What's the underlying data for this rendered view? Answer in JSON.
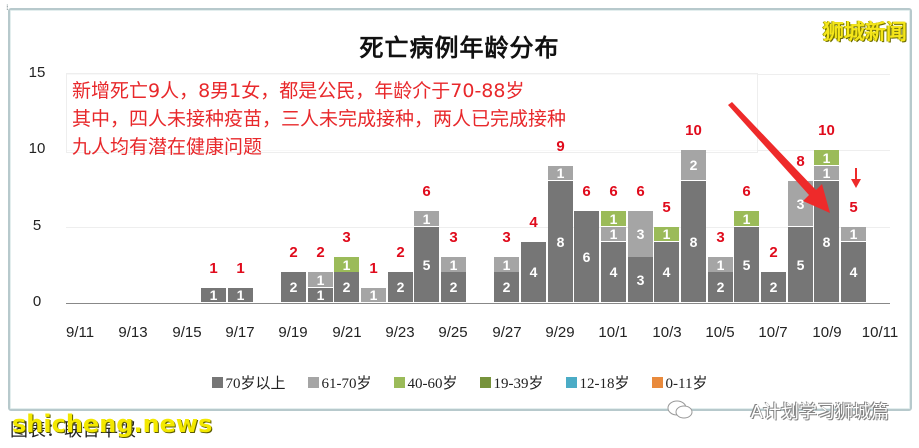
{
  "title": "死亡病例年龄分布",
  "watermark_top": "狮城新闻",
  "annotation": {
    "lines": [
      "新增死亡9人，8男1女，都是公民，年龄介于70-88岁",
      "其中，四人未接种疫苗，三人未完成接种，两人已完成接种",
      "九人均有潜在健康问题"
    ],
    "color": "#e8282b"
  },
  "footer": {
    "left_text": "图表：联合早报",
    "left_overlay": "shicheng.news",
    "right_text": "A计划学习狮城篇"
  },
  "colors": {
    "70_plus": "#767676",
    "61_70": "#a5a5a5",
    "40_60": "#9bbb59",
    "19_39": "#77933c",
    "12_18": "#4bacc6",
    "0_11": "#e98a3c",
    "total_label": "#e00b1c"
  },
  "legend": [
    {
      "label": "70岁以上",
      "color": "#767676"
    },
    {
      "label": "61-70岁",
      "color": "#a5a5a5"
    },
    {
      "label": "40-60岁",
      "color": "#9bbb59"
    },
    {
      "label": "19-39岁",
      "color": "#77933c"
    },
    {
      "label": "12-18岁",
      "color": "#4bacc6"
    },
    {
      "label": "0-11岁",
      "color": "#e98a3c"
    }
  ],
  "y_ticks": [
    "0",
    "5",
    "10",
    "15"
  ],
  "x_ticks": [
    "9/11",
    "9/13",
    "9/15",
    "9/17",
    "9/19",
    "9/21",
    "9/23",
    "9/25",
    "9/27",
    "9/29",
    "10/1",
    "10/3",
    "10/5",
    "10/7",
    "10/9",
    "10/11"
  ],
  "chart_data": {
    "type": "bar",
    "stacked": true,
    "title": "死亡病例年龄分布",
    "xlabel": "",
    "ylabel": "",
    "ylim": [
      0,
      15
    ],
    "grid": true,
    "legend_position": "bottom",
    "categories": [
      "9/16",
      "9/17",
      "9/19",
      "9/20",
      "9/21",
      "9/22",
      "9/23",
      "9/24",
      "9/25",
      "9/27",
      "9/28",
      "9/29",
      "9/30",
      "10/1",
      "10/2",
      "10/3",
      "10/4",
      "10/5",
      "10/6",
      "10/7",
      "10/8",
      "10/9",
      "10/10"
    ],
    "series": [
      {
        "name": "70岁以上",
        "values": [
          1,
          1,
          2,
          1,
          2,
          0,
          2,
          5,
          2,
          2,
          4,
          8,
          6,
          4,
          3,
          4,
          8,
          2,
          5,
          2,
          5,
          8,
          4
        ]
      },
      {
        "name": "61-70岁",
        "values": [
          0,
          0,
          0,
          1,
          0,
          1,
          0,
          1,
          1,
          1,
          0,
          1,
          0,
          1,
          3,
          0,
          2,
          1,
          0,
          0,
          3,
          1,
          1
        ]
      },
      {
        "name": "40-60岁",
        "values": [
          0,
          0,
          0,
          0,
          1,
          0,
          0,
          0,
          0,
          0,
          0,
          0,
          0,
          1,
          0,
          1,
          0,
          0,
          1,
          0,
          0,
          1,
          0
        ]
      },
      {
        "name": "19-39岁",
        "values": [
          0,
          0,
          0,
          0,
          0,
          0,
          0,
          0,
          0,
          0,
          0,
          0,
          0,
          0,
          0,
          0,
          0,
          0,
          0,
          0,
          0,
          0,
          0
        ]
      },
      {
        "name": "12-18岁",
        "values": [
          0,
          0,
          0,
          0,
          0,
          0,
          0,
          0,
          0,
          0,
          0,
          0,
          0,
          0,
          0,
          0,
          0,
          0,
          0,
          0,
          0,
          0,
          0
        ]
      },
      {
        "name": "0-11岁",
        "values": [
          0,
          0,
          0,
          0,
          0,
          0,
          0,
          0,
          0,
          0,
          0,
          0,
          0,
          0,
          0,
          0,
          0,
          0,
          0,
          0,
          0,
          0,
          0
        ]
      }
    ],
    "totals": [
      1,
      1,
      2,
      2,
      3,
      1,
      2,
      6,
      3,
      3,
      4,
      9,
      6,
      6,
      6,
      5,
      10,
      3,
      6,
      2,
      8,
      10,
      5
    ],
    "day_index": [
      5,
      6,
      8,
      9,
      10,
      11,
      12,
      13,
      14,
      16,
      17,
      18,
      19,
      20,
      21,
      22,
      23,
      24,
      25,
      26,
      27,
      28,
      29
    ],
    "annotations": [
      "新增死亡9人，8男1女，都是公民，年龄介于70-88岁",
      "其中，四人未接种疫苗，三人未完成接种，两人已完成接种",
      "九人均有潜在健康问题"
    ]
  }
}
